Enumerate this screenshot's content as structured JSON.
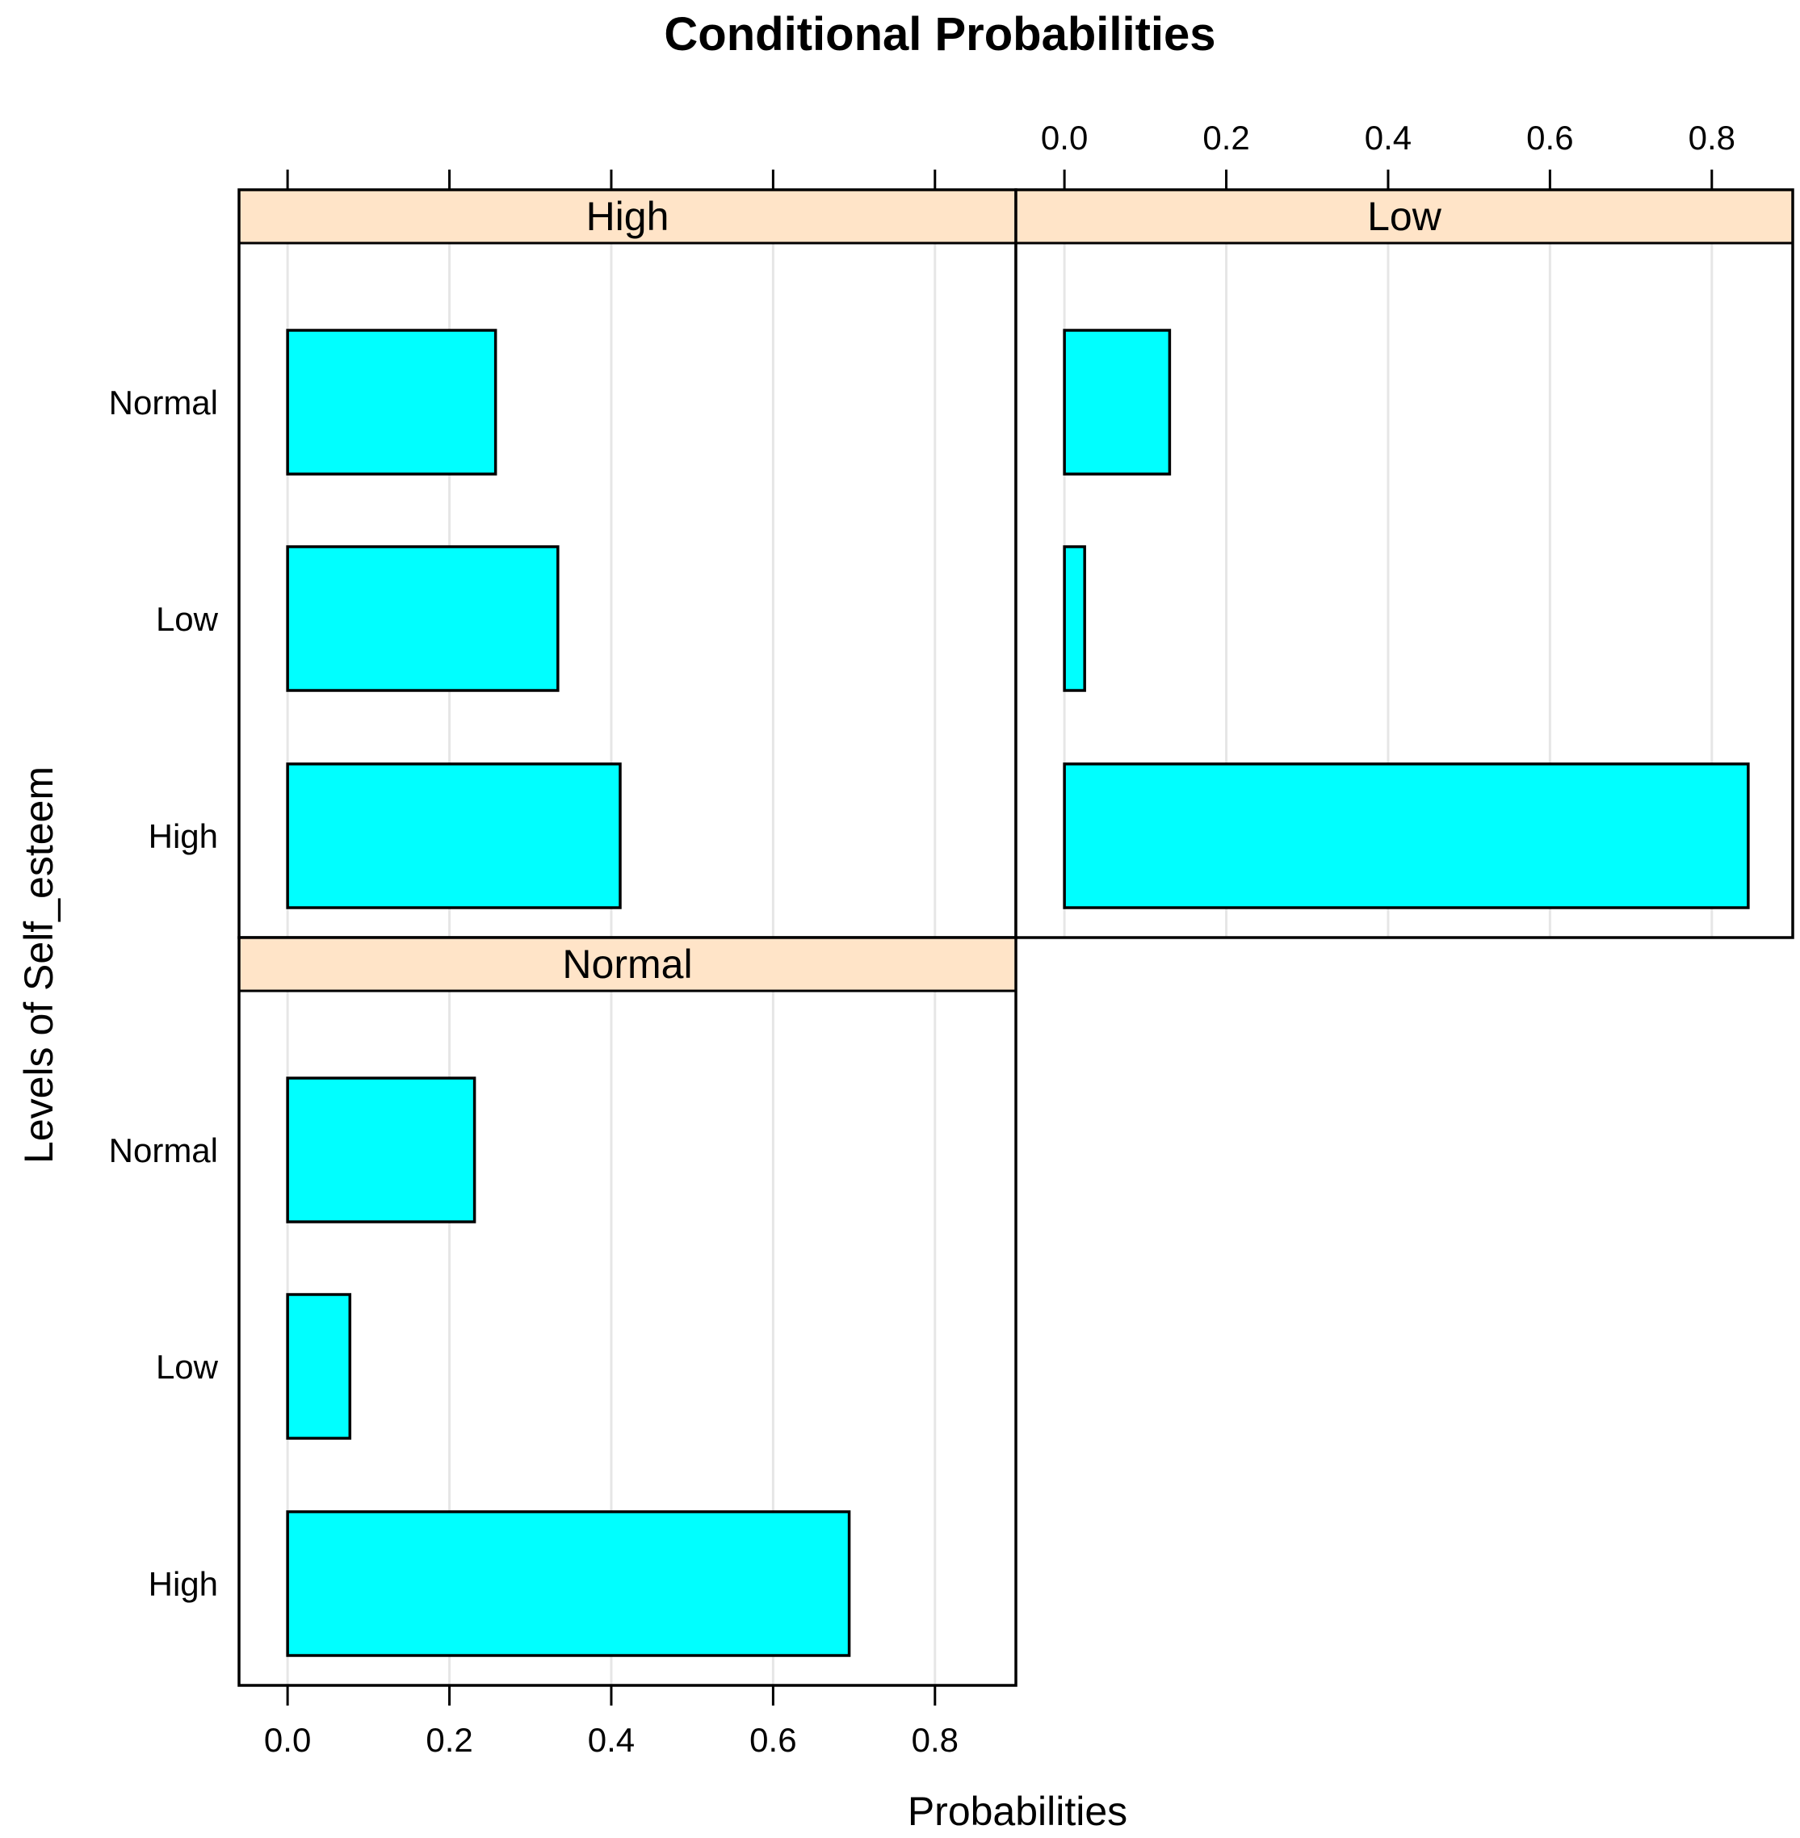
{
  "chart_data": {
    "type": "bar",
    "orientation": "horizontal",
    "title": "Conditional Probabilities",
    "xlabel": "Probabilities",
    "ylabel": "Levels of Self_esteem",
    "xlim": [
      -0.06,
      0.9
    ],
    "ticks": [
      "0.0",
      "0.2",
      "0.4",
      "0.6",
      "0.8"
    ],
    "tick_values": [
      0.0,
      0.2,
      0.4,
      0.6,
      0.8
    ],
    "grid": true,
    "categories": [
      "Normal",
      "Low",
      "High"
    ],
    "panels": [
      {
        "strip": "High",
        "values": [
          0.257,
          0.334,
          0.411
        ]
      },
      {
        "strip": "Low",
        "values": [
          0.13,
          0.025,
          0.845
        ]
      },
      {
        "strip": "Normal",
        "values": [
          0.231,
          0.077,
          0.694
        ]
      }
    ],
    "colors": {
      "bar_fill": "#00FFFF",
      "bar_stroke": "#000000",
      "strip_fill": "#FFE4C8",
      "grid": "#E6E6E6",
      "frame": "#000000"
    }
  }
}
